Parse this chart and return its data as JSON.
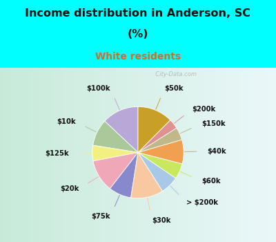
{
  "title_line1": "Income distribution in Anderson, SC",
  "title_line2": "(%)",
  "subtitle": "White residents",
  "title_color": "#111111",
  "subtitle_color": "#c87030",
  "bg_color": "#00ffff",
  "chart_bg_left": "#c8e8d8",
  "chart_bg_right": "#e8f4f8",
  "watermark": "  City-Data.com",
  "labels": [
    "$100k",
    "$10k",
    "$125k",
    "$20k",
    "$75k",
    "$30k",
    "> $200k",
    "$60k",
    "$40k",
    "$150k",
    "$200k",
    "$50k"
  ],
  "values": [
    13.0,
    9.5,
    5.5,
    11.5,
    8.0,
    11.5,
    6.5,
    5.5,
    8.5,
    4.5,
    3.5,
    12.5
  ],
  "colors": [
    "#b8a8d8",
    "#aac89a",
    "#f2f080",
    "#f0a8b8",
    "#8888cc",
    "#f8c8a0",
    "#a8c8e8",
    "#c8e860",
    "#f0a050",
    "#c0b888",
    "#e09090",
    "#c8a028"
  ],
  "start_angle": 90,
  "label_fontsize": 7.2,
  "title_fontsize": 11.5,
  "subtitle_fontsize": 10
}
